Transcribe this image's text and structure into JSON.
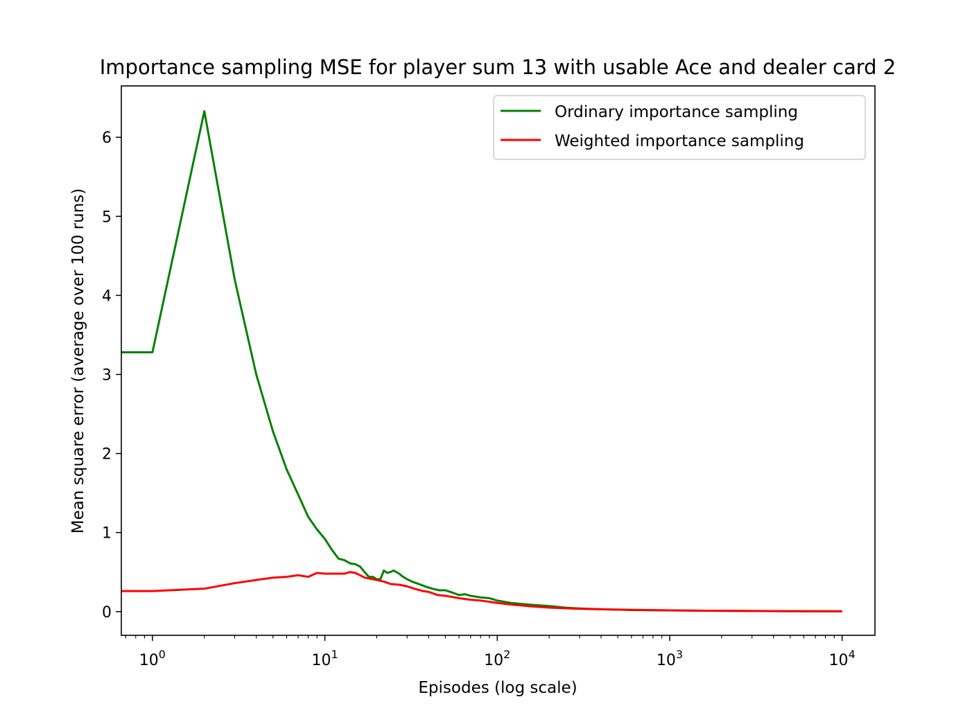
{
  "chart_data": {
    "type": "line",
    "title": "Importance sampling MSE for player sum 13 with usable Ace and dealer card 2",
    "xlabel": "Episodes (log scale)",
    "ylabel": "Mean square error (average over 100 runs)",
    "xscale": "log",
    "xlim": [
      0.66,
      15500
    ],
    "ylim": [
      -0.3,
      6.65
    ],
    "x_ticks": [
      1,
      10,
      100,
      1000,
      10000
    ],
    "x_tick_labels": [
      {
        "base": "10",
        "exp": "0"
      },
      {
        "base": "10",
        "exp": "1"
      },
      {
        "base": "10",
        "exp": "2"
      },
      {
        "base": "10",
        "exp": "3"
      },
      {
        "base": "10",
        "exp": "4"
      }
    ],
    "y_ticks": [
      0,
      1,
      2,
      3,
      4,
      5,
      6
    ],
    "y_tick_labels": [
      "0",
      "1",
      "2",
      "3",
      "4",
      "5",
      "6"
    ],
    "grid": false,
    "legend": "top-right",
    "series": [
      {
        "name": "Ordinary importance sampling",
        "color": "#008000",
        "points": [
          [
            0.66,
            3.28
          ],
          [
            1,
            3.28
          ],
          [
            2,
            6.33
          ],
          [
            3,
            4.2
          ],
          [
            4,
            3.0
          ],
          [
            5,
            2.28
          ],
          [
            6,
            1.8
          ],
          [
            7,
            1.48
          ],
          [
            8,
            1.2
          ],
          [
            9,
            1.04
          ],
          [
            10,
            0.92
          ],
          [
            11,
            0.78
          ],
          [
            12,
            0.67
          ],
          [
            13,
            0.65
          ],
          [
            14,
            0.61
          ],
          [
            15,
            0.6
          ],
          [
            16,
            0.57
          ],
          [
            17,
            0.5
          ],
          [
            18,
            0.44
          ],
          [
            19,
            0.44
          ],
          [
            20,
            0.41
          ],
          [
            21,
            0.41
          ],
          [
            22,
            0.52
          ],
          [
            23,
            0.49
          ],
          [
            24,
            0.5
          ],
          [
            25,
            0.52
          ],
          [
            26,
            0.5
          ],
          [
            27,
            0.48
          ],
          [
            28,
            0.45
          ],
          [
            30,
            0.41
          ],
          [
            32,
            0.38
          ],
          [
            35,
            0.35
          ],
          [
            38,
            0.32
          ],
          [
            42,
            0.29
          ],
          [
            46,
            0.27
          ],
          [
            50,
            0.27
          ],
          [
            55,
            0.24
          ],
          [
            60,
            0.21
          ],
          [
            65,
            0.22
          ],
          [
            70,
            0.2
          ],
          [
            80,
            0.18
          ],
          [
            90,
            0.17
          ],
          [
            100,
            0.14
          ],
          [
            120,
            0.11
          ],
          [
            150,
            0.09
          ],
          [
            200,
            0.07
          ],
          [
            250,
            0.05
          ],
          [
            300,
            0.04
          ],
          [
            400,
            0.03
          ],
          [
            600,
            0.02
          ],
          [
            1000,
            0.015
          ],
          [
            2000,
            0.01
          ],
          [
            5000,
            0.005
          ],
          [
            10000,
            0.003
          ]
        ]
      },
      {
        "name": "Weighted importance sampling",
        "color": "#ff0000",
        "points": [
          [
            0.66,
            0.26
          ],
          [
            1,
            0.26
          ],
          [
            2,
            0.29
          ],
          [
            3,
            0.36
          ],
          [
            4,
            0.4
          ],
          [
            5,
            0.43
          ],
          [
            6,
            0.44
          ],
          [
            7,
            0.46
          ],
          [
            8,
            0.44
          ],
          [
            9,
            0.49
          ],
          [
            10,
            0.48
          ],
          [
            11,
            0.48
          ],
          [
            12,
            0.48
          ],
          [
            13,
            0.48
          ],
          [
            14,
            0.5
          ],
          [
            15,
            0.49
          ],
          [
            16,
            0.46
          ],
          [
            17,
            0.43
          ],
          [
            18,
            0.42
          ],
          [
            20,
            0.4
          ],
          [
            22,
            0.38
          ],
          [
            24,
            0.35
          ],
          [
            27,
            0.34
          ],
          [
            30,
            0.32
          ],
          [
            33,
            0.29
          ],
          [
            37,
            0.26
          ],
          [
            40,
            0.25
          ],
          [
            45,
            0.21
          ],
          [
            50,
            0.2
          ],
          [
            60,
            0.17
          ],
          [
            70,
            0.15
          ],
          [
            80,
            0.14
          ],
          [
            100,
            0.11
          ],
          [
            120,
            0.09
          ],
          [
            150,
            0.07
          ],
          [
            200,
            0.05
          ],
          [
            300,
            0.035
          ],
          [
            500,
            0.025
          ],
          [
            1000,
            0.015
          ],
          [
            2000,
            0.01
          ],
          [
            5000,
            0.006
          ],
          [
            10000,
            0.004
          ]
        ]
      }
    ]
  }
}
